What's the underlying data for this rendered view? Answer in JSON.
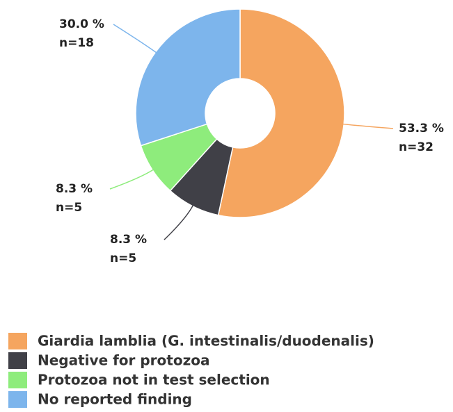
{
  "chart_data": {
    "type": "donut",
    "categories": [
      "Giardia lamblia (G. intestinalis/duodenalis)",
      "Negative for protozoa",
      "Protozoa not in test selection",
      "No reported finding"
    ],
    "values": [
      53.3,
      8.3,
      8.3,
      30.0
    ],
    "value_labels": [
      "53.3 %",
      "8.3 %",
      "8.3 %",
      "30.0 %"
    ],
    "n_labels": [
      "n=32",
      "n=5",
      "n=5",
      "n=18"
    ],
    "colors": [
      "#f5a55f",
      "#404047",
      "#8eec7c",
      "#7db5ec"
    ],
    "legend": "bottom-left"
  }
}
